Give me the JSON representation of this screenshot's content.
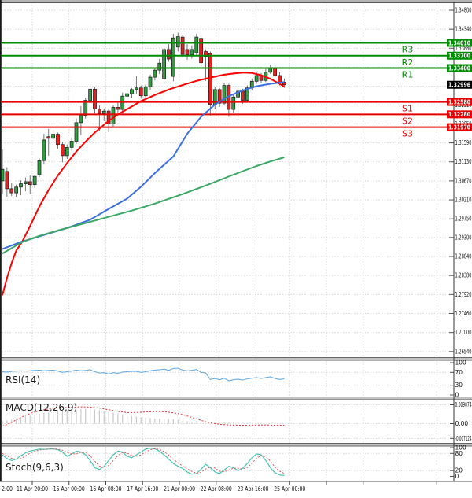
{
  "colors": {
    "bull": "#2f9e3f",
    "bear": "#e32222",
    "candle_border": "#222222",
    "wick": "#666666",
    "ma_fast": "#ff0000",
    "ma_medium": "#3b6fe0",
    "ma_slow": "#3aa864",
    "resistance": "#008b00",
    "support": "#e60000",
    "current_badge_bg": "#000000",
    "rsi_line": "#6aace0",
    "macd_hist": "#c9c9c9",
    "macd_signal": "#e03333",
    "stoch_k": "#45c5b5",
    "stoch_d": "#e05555",
    "grid": "#d8d8d8"
  },
  "price_axis": {
    "labels": [
      "1.34800",
      "1.34340",
      "1.33880",
      "1.33420",
      "1.32960",
      "1.32510",
      "1.32050",
      "1.31590",
      "1.31130",
      "1.30670",
      "1.30210",
      "1.29750",
      "1.29300",
      "1.28840",
      "1.28380",
      "1.27920",
      "1.27460",
      "1.27000",
      "1.26540"
    ]
  },
  "time_axis": {
    "labels": [
      "2:00",
      "11 Apr 20:00",
      "15 Apr 00:00",
      "16 Apr 08:00",
      "17 Apr 16:00",
      "21 Apr 00:00",
      "22 Apr 08:00",
      "23 Apr 16:00",
      "25 Apr 00:00"
    ]
  },
  "levels": {
    "resistance": [
      {
        "label": "R3",
        "price": 1.3401,
        "badge": "1.34010"
      },
      {
        "label": "R2",
        "price": 1.337,
        "badge": "1.33700"
      },
      {
        "label": "R1",
        "price": 1.334,
        "badge": "1.33400"
      }
    ],
    "support": [
      {
        "label": "S1",
        "price": 1.3258,
        "badge": "1.32580"
      },
      {
        "label": "S2",
        "price": 1.3228,
        "badge": "1.32280"
      },
      {
        "label": "S3",
        "price": 1.3197,
        "badge": "1.31970"
      }
    ]
  },
  "current_price": {
    "price": 1.32996,
    "badge": "1.32996"
  },
  "chart_data": {
    "type": "candlestick",
    "timeframe_labels": [
      "2:00",
      "11 Apr 20:00",
      "15 Apr 00:00",
      "16 Apr 08:00",
      "17 Apr 16:00",
      "21 Apr 00:00",
      "22 Apr 08:00",
      "23 Apr 16:00",
      "25 Apr 00:00"
    ],
    "y_range": [
      1.2654,
      1.348
    ],
    "candles_ohlc": [
      [
        1.3067,
        1.3143,
        1.3035,
        1.3095
      ],
      [
        1.309,
        1.31,
        1.3029,
        1.3048
      ],
      [
        1.3048,
        1.3062,
        1.303,
        1.3038
      ],
      [
        1.3038,
        1.3058,
        1.3028,
        1.3052
      ],
      [
        1.3052,
        1.3068,
        1.3032,
        1.306
      ],
      [
        1.306,
        1.3075,
        1.3042,
        1.3065
      ],
      [
        1.3065,
        1.308,
        1.3035,
        1.3058
      ],
      [
        1.3058,
        1.3082,
        1.305,
        1.3078
      ],
      [
        1.3082,
        1.3122,
        1.3076,
        1.3116
      ],
      [
        1.3116,
        1.3181,
        1.3108,
        1.3166
      ],
      [
        1.3174,
        1.3193,
        1.3128,
        1.317
      ],
      [
        1.317,
        1.319,
        1.316,
        1.318
      ],
      [
        1.318,
        1.3184,
        1.3145,
        1.3155
      ],
      [
        1.3155,
        1.3162,
        1.3112,
        1.3128
      ],
      [
        1.3128,
        1.3155,
        1.312,
        1.3148
      ],
      [
        1.3148,
        1.3172,
        1.314,
        1.3163
      ],
      [
        1.3163,
        1.3218,
        1.3157,
        1.3208
      ],
      [
        1.3208,
        1.3248,
        1.3178,
        1.3225
      ],
      [
        1.3225,
        1.3268,
        1.3218,
        1.3262
      ],
      [
        1.3262,
        1.3301,
        1.3256,
        1.3289
      ],
      [
        1.3289,
        1.3294,
        1.323,
        1.3241
      ],
      [
        1.3241,
        1.325,
        1.3187,
        1.323
      ],
      [
        1.323,
        1.3242,
        1.3212,
        1.3236
      ],
      [
        1.3236,
        1.324,
        1.3185,
        1.3205
      ],
      [
        1.3205,
        1.325,
        1.3198,
        1.3245
      ],
      [
        1.3245,
        1.3256,
        1.3227,
        1.324
      ],
      [
        1.324,
        1.3281,
        1.3228,
        1.3272
      ],
      [
        1.3272,
        1.3286,
        1.3262,
        1.3278
      ],
      [
        1.3278,
        1.3292,
        1.3268,
        1.3288
      ],
      [
        1.3288,
        1.332,
        1.3278,
        1.3292
      ],
      [
        1.3292,
        1.3298,
        1.3266,
        1.3273
      ],
      [
        1.3273,
        1.33,
        1.3268,
        1.3295
      ],
      [
        1.3295,
        1.3324,
        1.3288,
        1.3318
      ],
      [
        1.3318,
        1.3342,
        1.331,
        1.3335
      ],
      [
        1.3335,
        1.3362,
        1.3326,
        1.3352
      ],
      [
        1.3314,
        1.3394,
        1.3305,
        1.3385
      ],
      [
        1.3385,
        1.3398,
        1.3355,
        1.3362
      ],
      [
        1.332,
        1.3423,
        1.3308,
        1.3413
      ],
      [
        1.3391,
        1.3426,
        1.338,
        1.3416
      ],
      [
        1.3415,
        1.342,
        1.3365,
        1.3373
      ],
      [
        1.3385,
        1.3398,
        1.336,
        1.3372
      ],
      [
        1.3372,
        1.3395,
        1.3363,
        1.3385
      ],
      [
        1.3377,
        1.3423,
        1.337,
        1.3415
      ],
      [
        1.3412,
        1.342,
        1.3345,
        1.3353
      ],
      [
        1.338,
        1.3385,
        1.3309,
        1.3368
      ],
      [
        1.3375,
        1.338,
        1.3225,
        1.3252
      ],
      [
        1.3252,
        1.3295,
        1.324,
        1.3288
      ],
      [
        1.3288,
        1.3292,
        1.3246,
        1.3255
      ],
      [
        1.3255,
        1.3305,
        1.325,
        1.3298
      ],
      [
        1.3298,
        1.3302,
        1.3222,
        1.324
      ],
      [
        1.324,
        1.3278,
        1.3232,
        1.327
      ],
      [
        1.327,
        1.329,
        1.3219,
        1.3284
      ],
      [
        1.3284,
        1.329,
        1.3254,
        1.3262
      ],
      [
        1.3262,
        1.3298,
        1.3256,
        1.3292
      ],
      [
        1.3292,
        1.3315,
        1.3286,
        1.3308
      ],
      [
        1.3308,
        1.333,
        1.3302,
        1.3322
      ],
      [
        1.3322,
        1.3328,
        1.3304,
        1.331
      ],
      [
        1.331,
        1.3338,
        1.3306,
        1.333
      ],
      [
        1.333,
        1.3348,
        1.3326,
        1.334
      ],
      [
        1.334,
        1.3346,
        1.3316,
        1.3322
      ],
      [
        1.3322,
        1.333,
        1.3298,
        1.3306
      ],
      [
        1.3306,
        1.3315,
        1.3292,
        1.32996
      ]
    ],
    "moving_averages": [
      {
        "name": "ma-fast",
        "color": "#ff0000",
        "points": [
          [
            0,
            1.279
          ],
          [
            1,
            1.2832
          ],
          [
            2,
            1.2868
          ],
          [
            3,
            1.2898
          ],
          [
            4.3,
            1.292
          ],
          [
            6,
            1.2958
          ],
          [
            8,
            1.3005
          ],
          [
            10,
            1.3045
          ],
          [
            12,
            1.308
          ],
          [
            14,
            1.311
          ],
          [
            16,
            1.3138
          ],
          [
            18,
            1.3162
          ],
          [
            20,
            1.3184
          ],
          [
            22.5,
            1.3208
          ],
          [
            25,
            1.3228
          ],
          [
            28,
            1.3247
          ],
          [
            30,
            1.326
          ],
          [
            33,
            1.3275
          ],
          [
            36,
            1.3288
          ],
          [
            39,
            1.3299
          ],
          [
            42,
            1.3309
          ],
          [
            45,
            1.3317
          ],
          [
            48,
            1.3324
          ],
          [
            50,
            1.3327
          ],
          [
            52,
            1.3329
          ],
          [
            54,
            1.3328
          ],
          [
            56,
            1.3323
          ],
          [
            58,
            1.3314
          ],
          [
            60,
            1.3302
          ],
          [
            61,
            1.3295
          ]
        ]
      },
      {
        "name": "ma-medium",
        "color": "#3b6fe0",
        "points": [
          [
            0,
            1.2902
          ],
          [
            4,
            1.2919
          ],
          [
            9,
            1.2936
          ],
          [
            14,
            1.2953
          ],
          [
            19,
            1.2973
          ],
          [
            23,
            1.2999
          ],
          [
            27,
            1.3024
          ],
          [
            30,
            1.3053
          ],
          [
            33,
            1.3086
          ],
          [
            37,
            1.3126
          ],
          [
            40,
            1.3181
          ],
          [
            43,
            1.3222
          ],
          [
            46,
            1.3252
          ],
          [
            49,
            1.3272
          ],
          [
            52,
            1.3286
          ],
          [
            55,
            1.3296
          ],
          [
            58,
            1.3302
          ],
          [
            61,
            1.3306
          ]
        ]
      },
      {
        "name": "ma-slow",
        "color": "#3aa864",
        "points": [
          [
            0,
            1.2891
          ],
          [
            4.3,
            1.2919
          ],
          [
            8,
            1.2934
          ],
          [
            12,
            1.2947
          ],
          [
            17,
            1.2962
          ],
          [
            22,
            1.2977
          ],
          [
            28,
            1.2995
          ],
          [
            33,
            1.3012
          ],
          [
            39,
            1.3035
          ],
          [
            45,
            1.306
          ],
          [
            50,
            1.3082
          ],
          [
            55,
            1.3103
          ],
          [
            58,
            1.3114
          ],
          [
            61,
            1.3124
          ]
        ]
      }
    ],
    "indicators": [
      {
        "name": "RSI(14)",
        "type": "line",
        "range": [
          0,
          100
        ],
        "ticks": [
          "100",
          "70",
          "30",
          "0"
        ],
        "grid": [
          70,
          30
        ],
        "values": [
          72,
          71,
          73,
          74,
          75,
          74,
          75,
          76,
          77,
          75,
          76,
          77,
          74,
          70,
          72,
          74,
          77,
          75,
          76,
          78,
          72,
          68,
          69,
          65,
          69,
          67,
          71,
          72,
          73,
          73,
          70,
          72,
          75,
          77,
          78,
          80,
          76,
          82,
          83,
          77,
          75,
          76,
          79,
          70,
          68,
          48,
          51,
          47,
          52,
          44,
          47,
          49,
          46,
          50,
          52,
          54,
          51,
          54,
          56,
          51,
          48,
          50
        ]
      },
      {
        "name": "MACD(12,26,9)",
        "type": "histogram+line",
        "ticks": [
          "0.009074",
          "0.00",
          "-0.007124"
        ],
        "histogram": [
          0.0012,
          0.0015,
          0.0018,
          0.0022,
          0.0028,
          0.0034,
          0.0038,
          0.0042,
          0.0047,
          0.0051,
          0.0054,
          0.0057,
          0.0059,
          0.006,
          0.0062,
          0.0064,
          0.0066,
          0.0069,
          0.0071,
          0.007,
          0.0068,
          0.0065,
          0.0061,
          0.0057,
          0.0053,
          0.0049,
          0.0045,
          0.0041,
          0.0037,
          0.0034,
          0.0032,
          0.0029,
          0.0027,
          0.0025,
          0.0024,
          0.0023,
          0.0022,
          0.0021,
          0.0019,
          0.0016,
          0.0012,
          0.0008,
          0.0005,
          0.0003,
          0.0002,
          0.0002,
          0.0004,
          0.0005,
          0.0006,
          0.0005,
          0.0004,
          0.0005,
          0.0004,
          0.0003,
          0.0002,
          0.0002,
          0.0001,
          0.0001,
          0.0001,
          0.0001,
          0.0,
          0.0
        ],
        "signal": [
          -0.0012,
          -0.0004,
          0.0006,
          0.0018,
          0.003,
          0.004,
          0.0049,
          0.0056,
          0.0062,
          0.0067,
          0.0071,
          0.0074,
          0.0076,
          0.0077,
          0.0078,
          0.0079,
          0.008,
          0.0081,
          0.0081,
          0.008,
          0.0078,
          0.0075,
          0.0071,
          0.0067,
          0.0063,
          0.0059,
          0.0056,
          0.0054,
          0.0053,
          0.0054,
          0.0055,
          0.0056,
          0.0057,
          0.0058,
          0.0058,
          0.0057,
          0.0055,
          0.0052,
          0.0048,
          0.0043,
          0.0037,
          0.003,
          0.0023,
          0.0016,
          0.0009,
          0.0004,
          0.0,
          -0.0003,
          -0.0005,
          -0.0006,
          -0.0007,
          -0.0007,
          -0.0008,
          -0.0008,
          -0.0007,
          -0.0007,
          -0.0006,
          -0.0006,
          -0.0007,
          -0.0008,
          -0.0008,
          -0.0008
        ]
      },
      {
        "name": "Stoch(9,6,3)",
        "type": "line",
        "range": [
          0,
          100
        ],
        "ticks": [
          "100",
          "80",
          "20",
          "0"
        ],
        "grid": [
          80,
          20
        ],
        "k": [
          75,
          62,
          55,
          60,
          72,
          82,
          88,
          92,
          95,
          94,
          95,
          96,
          93,
          85,
          70,
          78,
          88,
          85,
          75,
          55,
          30,
          24,
          35,
          55,
          75,
          88,
          85,
          70,
          65,
          75,
          85,
          95,
          98,
          96,
          88,
          75,
          60,
          45,
          35,
          28,
          15,
          8,
          10,
          25,
          42,
          30,
          15,
          10,
          22,
          35,
          30,
          20,
          28,
          45,
          65,
          78,
          75,
          55,
          30,
          12,
          5,
          3
        ],
        "d": [
          80,
          72,
          63,
          59,
          62,
          71,
          81,
          87,
          92,
          94,
          95,
          95,
          95,
          91,
          83,
          78,
          79,
          84,
          83,
          72,
          53,
          36,
          30,
          38,
          55,
          73,
          83,
          81,
          73,
          70,
          75,
          85,
          93,
          96,
          94,
          86,
          74,
          60,
          47,
          36,
          26,
          17,
          11,
          14,
          26,
          32,
          29,
          18,
          16,
          22,
          29,
          28,
          26,
          31,
          46,
          63,
          73,
          69,
          53,
          32,
          18,
          10
        ]
      }
    ]
  }
}
